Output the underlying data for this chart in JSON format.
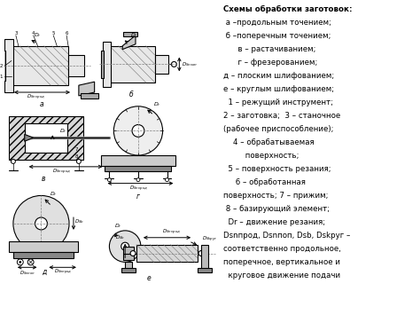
{
  "bg_color": "#ffffff",
  "text_lines": [
    [
      "Схемы обработки заготовок:",
      "bold"
    ],
    [
      " а –продольным точением;",
      "normal"
    ],
    [
      " б –поперечным точением;",
      "normal"
    ],
    [
      "      в – растачиванием;",
      "normal"
    ],
    [
      "      г – фрезерованием;",
      "normal"
    ],
    [
      "д – плоским шлифованием;",
      "normal"
    ],
    [
      "е – круглым шлифованием;",
      "normal"
    ],
    [
      "  1 – режущий инструмент;",
      "normal"
    ],
    [
      "2 – заготовка;  3 – станочное",
      "normal"
    ],
    [
      "(рабочее приспособление);",
      "normal"
    ],
    [
      "    4 – обрабатываемая",
      "normal"
    ],
    [
      "         поверхность;",
      "normal"
    ],
    [
      "  5 – поверхность резания;",
      "normal"
    ],
    [
      "     6 – обработанная",
      "normal"
    ],
    [
      "поверхность; 7 – прижим;",
      "normal"
    ],
    [
      " 8 – базирующий элемент;",
      "normal"
    ],
    [
      "  Dr – движение резания;",
      "normal"
    ],
    [
      "Dsnпрод, Dsnпоп, Dsb, Dskруг –",
      "normal"
    ],
    [
      "соответственно продольное,",
      "normal"
    ],
    [
      "поперечное, вертикальное и",
      "normal"
    ],
    [
      "  круговое движение подачи",
      "normal"
    ]
  ]
}
